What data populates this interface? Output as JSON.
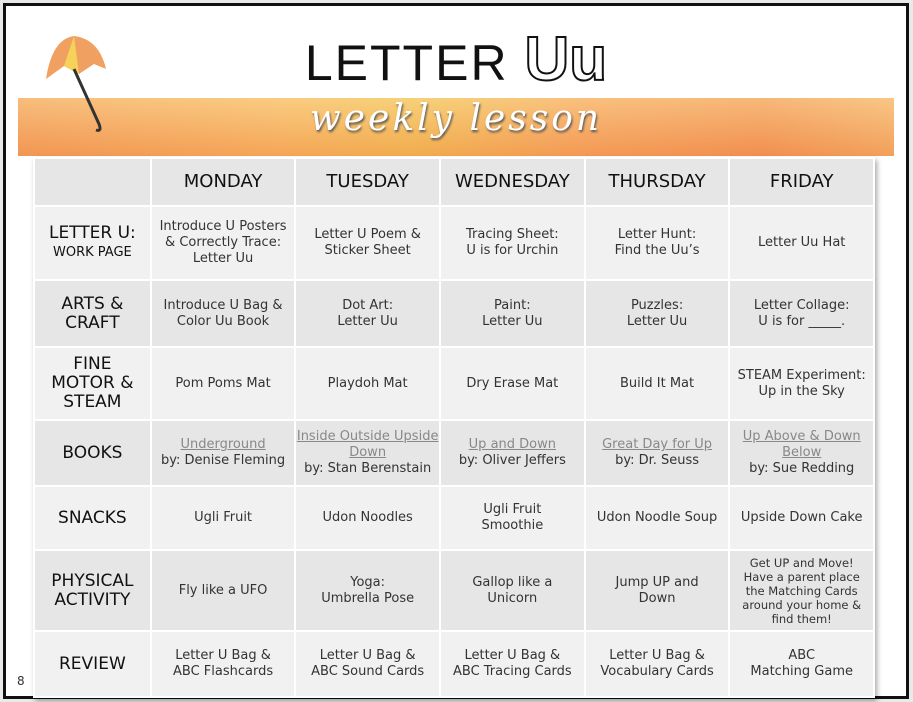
{
  "header": {
    "title": "LETTER",
    "title_letter": "Uu",
    "subtitle": "weekly lesson",
    "icon": "umbrella-icon"
  },
  "days": [
    "MONDAY",
    "TUESDAY",
    "WEDNESDAY",
    "THURSDAY",
    "FRIDAY"
  ],
  "rows": [
    {
      "label": [
        "LETTER U:"
      ],
      "sublabel": "WORK PAGE",
      "cells": [
        [
          "Introduce U Posters",
          "& Correctly Trace:",
          "Letter Uu"
        ],
        [
          "Letter U Poem &",
          "Sticker Sheet"
        ],
        [
          "Tracing Sheet:",
          "U is for Urchin"
        ],
        [
          "Letter Hunt:",
          "Find the Uu’s"
        ],
        [
          "Letter Uu Hat"
        ]
      ]
    },
    {
      "label": [
        "ARTS &",
        "CRAFT"
      ],
      "cells": [
        [
          "Introduce U Bag &",
          "Color Uu Book"
        ],
        [
          "Dot Art:",
          "Letter Uu"
        ],
        [
          "Paint:",
          "Letter Uu"
        ],
        [
          "Puzzles:",
          "Letter Uu"
        ],
        [
          "Letter Collage:",
          "U is for _____."
        ]
      ]
    },
    {
      "label": [
        "FINE",
        "MOTOR &",
        "STEAM"
      ],
      "cells": [
        [
          "Pom Poms Mat"
        ],
        [
          "Playdoh Mat"
        ],
        [
          "Dry Erase Mat"
        ],
        [
          "Build It Mat"
        ],
        [
          "STEAM Experiment:",
          "Up in the Sky"
        ]
      ]
    },
    {
      "label": [
        "BOOKS"
      ],
      "books": [
        {
          "title": "Underground",
          "author": "by: Denise Fleming"
        },
        {
          "title": "Inside Outside Upside Down",
          "author": "by: Stan Berenstain"
        },
        {
          "title": "Up and Down",
          "author": "by: Oliver Jeffers"
        },
        {
          "title": "Great Day for Up",
          "author": "by: Dr. Seuss"
        },
        {
          "title": "Up Above & Down Below",
          "author": "by: Sue Redding"
        }
      ]
    },
    {
      "label": [
        "SNACKS"
      ],
      "cells": [
        [
          "Ugli Fruit"
        ],
        [
          "Udon Noodles"
        ],
        [
          "Ugli Fruit",
          "Smoothie"
        ],
        [
          "Udon Noodle Soup"
        ],
        [
          "Upside Down Cake"
        ]
      ]
    },
    {
      "label": [
        "PHYSICAL",
        "ACTIVITY"
      ],
      "cells": [
        [
          "Fly like a UFO"
        ],
        [
          "Yoga:",
          "Umbrella Pose"
        ],
        [
          "Gallop like a",
          "Unicorn"
        ],
        [
          "Jump UP and",
          "Down"
        ],
        [
          "Get UP and Move!",
          "Have a parent place",
          "the Matching Cards",
          "around your home &",
          "find them!"
        ]
      ]
    },
    {
      "label": [
        "REVIEW"
      ],
      "cells": [
        [
          "Letter U Bag &",
          "ABC Flashcards"
        ],
        [
          "Letter U Bag &",
          "ABC Sound Cards"
        ],
        [
          "Letter U Bag &",
          "ABC Tracing Cards"
        ],
        [
          "Letter U Bag &",
          "Vocabulary Cards"
        ],
        [
          "ABC",
          "Matching Game"
        ]
      ]
    }
  ],
  "page_number": "8"
}
